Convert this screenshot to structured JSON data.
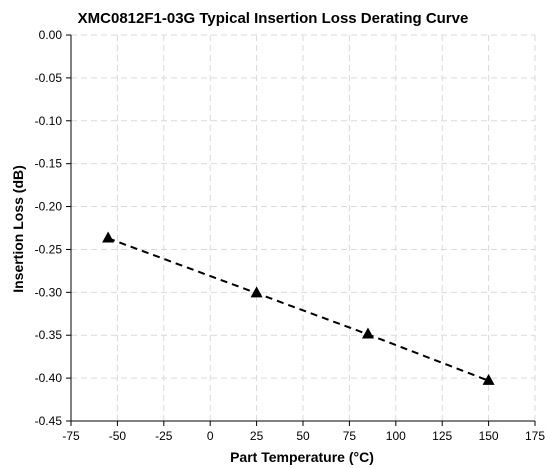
{
  "chart_data": {
    "type": "line",
    "title": "XMC0812F1-03G Typical Insertion Loss Derating Curve",
    "xlabel": "Part Temperature (°C)",
    "ylabel": "Insertion Loss (dB)",
    "xlim": [
      -75,
      175
    ],
    "ylim": [
      -0.45,
      0.0
    ],
    "x_ticks": [
      -75,
      -50,
      -25,
      0,
      25,
      50,
      75,
      100,
      125,
      150,
      175
    ],
    "x_tick_labels": [
      "-75",
      "-50",
      "-25",
      "0",
      "25",
      "50",
      "75",
      "100",
      "125",
      "150",
      "175"
    ],
    "y_ticks": [
      0.0,
      -0.05,
      -0.1,
      -0.15,
      -0.2,
      -0.25,
      -0.3,
      -0.35,
      -0.4,
      -0.45
    ],
    "y_tick_labels": [
      "0.00",
      "-0.05",
      "-0.10",
      "-0.15",
      "-0.20",
      "-0.25",
      "-0.30",
      "-0.35",
      "-0.40",
      "-0.45"
    ],
    "grid": true,
    "series": [
      {
        "x": [
          -55,
          25,
          85,
          150
        ],
        "y": [
          -0.237,
          -0.301,
          -0.349,
          -0.403
        ],
        "marker": "triangle",
        "line_style": "dashed",
        "color": "#000000"
      }
    ]
  }
}
